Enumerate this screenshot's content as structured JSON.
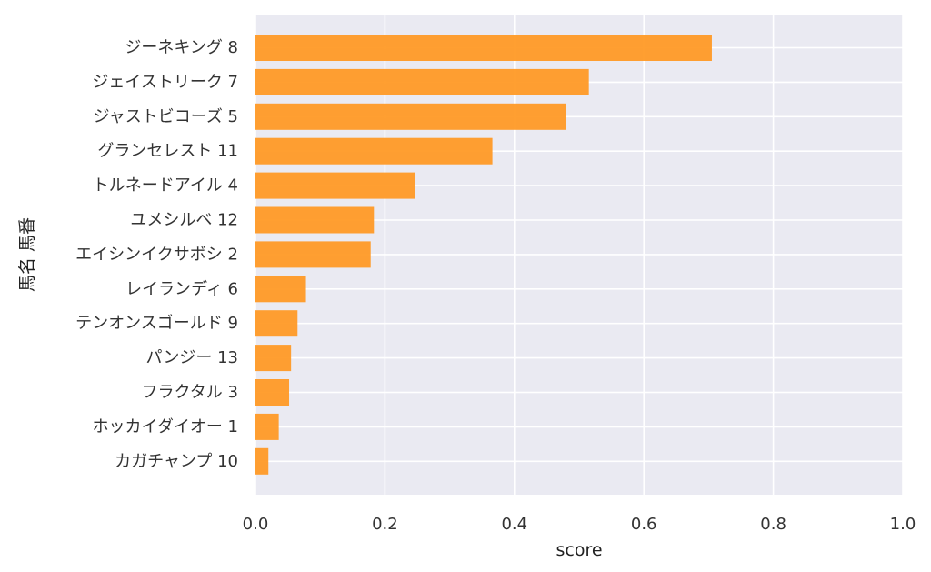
{
  "chart_data": {
    "type": "bar",
    "orientation": "horizontal",
    "categories": [
      "ジーネキング 8",
      "ジェイストリーク 7",
      "ジャストビコーズ 5",
      "グランセレスト 11",
      "トルネードアイル 4",
      "ユメシルベ 12",
      "エイシンイクサボシ 2",
      "レイランディ 6",
      "テンオンスゴールド 9",
      "パンジー 13",
      "フラクタル 3",
      "ホッカイダイオー 1",
      "カガチャンプ 10"
    ],
    "values": [
      0.705,
      0.515,
      0.48,
      0.366,
      0.247,
      0.183,
      0.178,
      0.078,
      0.065,
      0.055,
      0.052,
      0.036,
      0.02
    ],
    "xlabel": "score",
    "ylabel": "馬名 馬番",
    "xlim": [
      0,
      1.0
    ],
    "xticks": [
      "0.0",
      "0.2",
      "0.4",
      "0.6",
      "0.8",
      "1.0"
    ],
    "grid": true,
    "colors": {
      "bar": "#FF9A26",
      "plot_bg": "#EAEAF2",
      "grid": "#FFFFFF"
    }
  }
}
